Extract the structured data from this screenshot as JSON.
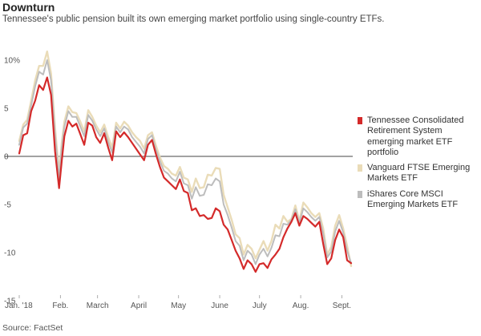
{
  "title": "Downturn",
  "subtitle": "Tennessee's public pension built its own emerging market portfolio using single-country ETFs.",
  "source": "Source: FactSet",
  "chart_data": {
    "type": "line",
    "title": "Downturn",
    "xlabel": "",
    "ylabel": "",
    "ylim": [
      -15,
      12
    ],
    "y_ticks": [
      10,
      5,
      0,
      -5,
      -10,
      -15
    ],
    "y_tick_labels": [
      "10%",
      "5",
      "0",
      "-5",
      "-10",
      "-15"
    ],
    "x_tick_labels": [
      "Jan. '18",
      "Feb.",
      "March",
      "April",
      "May",
      "June",
      "July",
      "Aug.",
      "Sept."
    ],
    "x_tick_days": [
      0,
      31,
      59,
      90,
      120,
      151,
      181,
      212,
      243
    ],
    "grid": false,
    "zero_line": true,
    "legend_position": "right",
    "series": [
      {
        "name": "Tennessee Consolidated Retirement System emerging market ETF portfolio",
        "color": "#d42a2a",
        "x": [
          0,
          3,
          6,
          9,
          12,
          15,
          18,
          21,
          24,
          27,
          30,
          32,
          34,
          37,
          40,
          43,
          46,
          49,
          52,
          55,
          58,
          61,
          64,
          67,
          70,
          73,
          76,
          79,
          82,
          85,
          88,
          91,
          94,
          97,
          100,
          103,
          106,
          109,
          112,
          115,
          118,
          121,
          124,
          127,
          130,
          133,
          136,
          139,
          142,
          145,
          148,
          151,
          154,
          157,
          160,
          163,
          166,
          169,
          172,
          175,
          178,
          181,
          184,
          187,
          190,
          193,
          196,
          199,
          202,
          205,
          208,
          211,
          214,
          217,
          220,
          223,
          226,
          229,
          232,
          235,
          238,
          241,
          244,
          247,
          250
        ],
        "values": [
          0.3,
          2.2,
          2.4,
          4.7,
          5.8,
          7.4,
          6.9,
          8.2,
          6.4,
          0.5,
          -3.3,
          -0.5,
          2.1,
          3.7,
          3.1,
          3.4,
          2.3,
          1.2,
          3.5,
          3.2,
          2.0,
          1.4,
          2.4,
          0.9,
          -0.4,
          2.6,
          2.0,
          2.5,
          2.0,
          1.4,
          0.8,
          0.2,
          -0.4,
          1.2,
          1.7,
          0.2,
          -1.1,
          -2.2,
          -2.6,
          -3.0,
          -3.4,
          -2.4,
          -3.6,
          -3.8,
          -5.6,
          -5.4,
          -6.2,
          -6.1,
          -6.5,
          -6.4,
          -5.4,
          -5.7,
          -7.1,
          -7.6,
          -8.7,
          -9.8,
          -10.6,
          -11.7,
          -10.8,
          -11.2,
          -12.0,
          -11.2,
          -11.1,
          -11.6,
          -10.7,
          -10.2,
          -9.6,
          -8.4,
          -7.5,
          -6.8,
          -5.9,
          -7.2,
          -6.2,
          -6.5,
          -6.9,
          -7.3,
          -6.8,
          -9.1,
          -11.2,
          -10.6,
          -8.7,
          -7.6,
          -8.4,
          -10.8,
          -11.1
        ]
      },
      {
        "name": "Vanguard FTSE Emerging Markets ETF",
        "color": "#eadcb8",
        "x": [
          0,
          3,
          6,
          9,
          12,
          15,
          18,
          21,
          24,
          27,
          30,
          32,
          34,
          37,
          40,
          43,
          46,
          49,
          52,
          55,
          58,
          61,
          64,
          67,
          70,
          73,
          76,
          79,
          82,
          85,
          88,
          91,
          94,
          97,
          100,
          103,
          106,
          109,
          112,
          115,
          118,
          121,
          124,
          127,
          130,
          133,
          136,
          139,
          142,
          145,
          148,
          151,
          154,
          157,
          160,
          163,
          166,
          169,
          172,
          175,
          178,
          181,
          184,
          187,
          190,
          193,
          196,
          199,
          202,
          205,
          208,
          211,
          214,
          217,
          220,
          223,
          226,
          229,
          232,
          235,
          238,
          241,
          244,
          247,
          250
        ],
        "values": [
          1.6,
          3.3,
          3.8,
          5.8,
          7.9,
          9.4,
          9.4,
          10.9,
          8.6,
          2.9,
          -1.7,
          1.4,
          3.6,
          5.2,
          4.6,
          4.5,
          3.6,
          2.6,
          4.8,
          4.1,
          3.2,
          2.5,
          3.3,
          2.0,
          0.9,
          3.5,
          2.9,
          3.6,
          3.2,
          2.5,
          2.0,
          1.6,
          0.8,
          2.2,
          2.5,
          1.1,
          -0.1,
          -1.0,
          -1.3,
          -1.8,
          -2.0,
          -1.1,
          -2.2,
          -2.4,
          -3.7,
          -2.3,
          -3.3,
          -3.2,
          -1.9,
          -2.0,
          -1.2,
          -1.3,
          -4.0,
          -5.3,
          -6.6,
          -8.1,
          -8.5,
          -10.2,
          -9.2,
          -9.6,
          -10.6,
          -9.7,
          -8.8,
          -9.8,
          -8.8,
          -7.1,
          -7.5,
          -6.2,
          -6.8,
          -6.5,
          -5.1,
          -6.7,
          -4.8,
          -5.3,
          -5.9,
          -6.3,
          -5.9,
          -7.5,
          -10.2,
          -9.4,
          -7.2,
          -6.1,
          -7.5,
          -9.3,
          -11.4
        ]
      },
      {
        "name": "iShares Core MSCI Emerging Markets ETF",
        "color": "#bdbdbd",
        "x": [
          0,
          3,
          6,
          9,
          12,
          15,
          18,
          21,
          24,
          27,
          30,
          32,
          34,
          37,
          40,
          43,
          46,
          49,
          52,
          55,
          58,
          61,
          64,
          67,
          70,
          73,
          76,
          79,
          82,
          85,
          88,
          91,
          94,
          97,
          100,
          103,
          106,
          109,
          112,
          115,
          118,
          121,
          124,
          127,
          130,
          133,
          136,
          139,
          142,
          145,
          148,
          151,
          154,
          157,
          160,
          163,
          166,
          169,
          172,
          175,
          178,
          181,
          184,
          187,
          190,
          193,
          196,
          199,
          202,
          205,
          208,
          211,
          214,
          217,
          220,
          223,
          226,
          229,
          232,
          235,
          238,
          241,
          244,
          247,
          250
        ],
        "values": [
          1.2,
          3.0,
          3.4,
          5.3,
          7.3,
          8.8,
          8.5,
          10.0,
          7.9,
          2.3,
          -2.3,
          0.9,
          3.1,
          4.7,
          4.1,
          4.1,
          3.1,
          2.1,
          4.3,
          3.7,
          2.8,
          2.1,
          2.9,
          1.5,
          0.4,
          3.1,
          2.5,
          3.1,
          2.8,
          2.0,
          1.5,
          1.0,
          0.3,
          1.8,
          2.2,
          0.7,
          -0.5,
          -1.5,
          -1.8,
          -2.3,
          -2.6,
          -1.6,
          -2.8,
          -3.0,
          -4.4,
          -3.2,
          -4.1,
          -4.0,
          -2.9,
          -3.0,
          -2.3,
          -2.6,
          -5.0,
          -6.1,
          -7.4,
          -8.8,
          -9.3,
          -10.8,
          -9.8,
          -10.2,
          -11.2,
          -10.2,
          -9.6,
          -10.4,
          -9.5,
          -8.2,
          -8.3,
          -7.0,
          -7.1,
          -6.6,
          -5.5,
          -6.9,
          -5.4,
          -5.8,
          -6.3,
          -6.7,
          -6.3,
          -8.0,
          -10.5,
          -9.9,
          -7.8,
          -6.7,
          -7.9,
          -9.8,
          -11.1
        ]
      }
    ]
  }
}
